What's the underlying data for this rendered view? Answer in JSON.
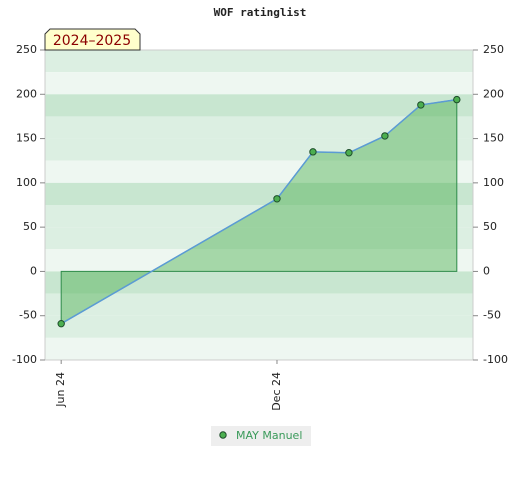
{
  "chart_data": {
    "type": "area-line",
    "title": "WOF ratinglist",
    "annotation": "2024–2025",
    "x": [
      0,
      6,
      7,
      8,
      9,
      10,
      11
    ],
    "xlim": [
      -0.45,
      11.45
    ],
    "xticks": [
      {
        "value": 0,
        "label": "Jun 24"
      },
      {
        "value": 6,
        "label": "Dec 24"
      }
    ],
    "series": [
      {
        "name": "MAY Manuel",
        "color": "#4caf50",
        "values": [
          -59,
          82,
          135,
          134,
          153,
          188,
          194
        ]
      }
    ],
    "ylim": [
      -100,
      250
    ],
    "yticks": [
      -100,
      -50,
      0,
      50,
      100,
      150,
      200,
      250
    ],
    "legend": "bottom"
  }
}
